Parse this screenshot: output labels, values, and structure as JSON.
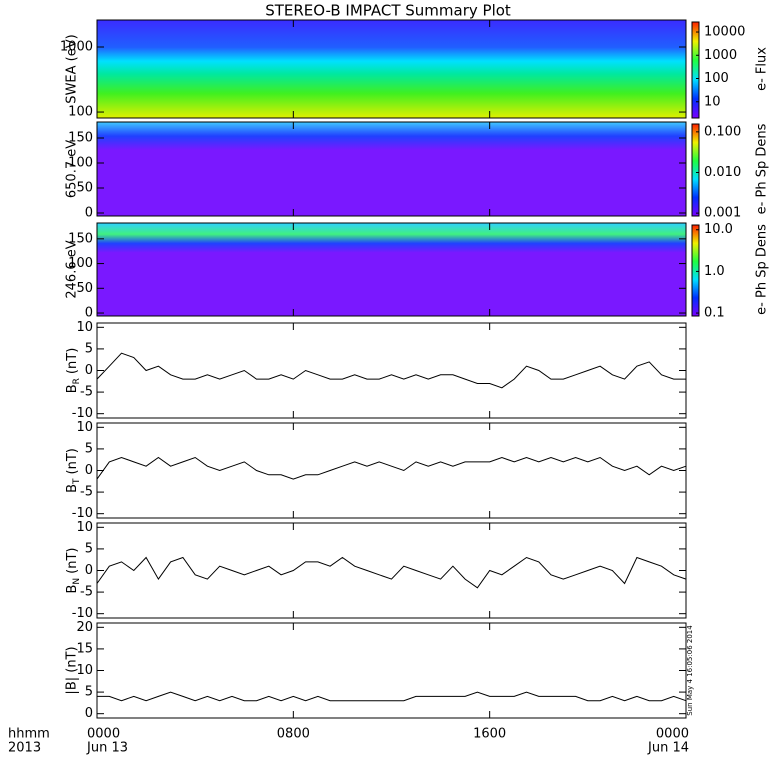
{
  "chart_data": [
    {
      "type": "spectrogram",
      "title": "STEREO-B IMPACT Summary Plot",
      "ylabel": "SWEA (eV)",
      "log": true,
      "ylim": [
        81,
        2600
      ],
      "yticks": [
        100,
        1000
      ],
      "colorbar": {
        "label": "e- Flux",
        "log": true,
        "clim": [
          2,
          27000
        ],
        "ticks": [
          10,
          100,
          1000,
          10000
        ]
      }
    },
    {
      "type": "spectrogram",
      "ylabel": "650.7 eV",
      "ylim": [
        -6,
        182
      ],
      "yticks": [
        0,
        50,
        100,
        150
      ],
      "colorbar": {
        "label": "e- Ph Sp Dens",
        "log": true,
        "clim": [
          0.00085,
          0.156
        ],
        "ticks": [
          {
            "value": 0.001,
            "label": "0.001"
          },
          {
            "value": 0.01,
            "label": "0.010"
          },
          {
            "value": 0.1,
            "label": "0.100"
          }
        ]
      }
    },
    {
      "type": "spectrogram",
      "ylabel": "246.6 eV",
      "ylim": [
        -6,
        182
      ],
      "yticks": [
        0,
        50,
        100,
        150
      ],
      "colorbar": {
        "label": "e- Ph Sp Dens",
        "log": true,
        "clim": [
          0.085,
          13
        ],
        "ticks": [
          0.1,
          {
            "value": 1,
            "label": "1.0"
          },
          {
            "value": 10,
            "label": "10.0"
          }
        ]
      }
    },
    {
      "type": "line",
      "ylabel": "B",
      "ylabel_sub": "R",
      "ylabel_unit": "(nT)",
      "ylim": [
        -11,
        11
      ],
      "yticks": [
        -10,
        -5,
        0,
        5,
        10
      ],
      "series": [
        {
          "color": "#000000",
          "values": [
            -2,
            1,
            4,
            3,
            0,
            1,
            -1,
            -2,
            -2,
            -1,
            -2,
            -1,
            0,
            -2,
            -2,
            -1,
            -2,
            0,
            -1,
            -2,
            -2,
            -1,
            -2,
            -2,
            -1,
            -2,
            -1,
            -2,
            -1,
            -1,
            -2,
            -3,
            -3,
            -4,
            -2,
            1,
            0,
            -2,
            -2,
            -1,
            0,
            1,
            -1,
            -2,
            1,
            2,
            -1,
            -2,
            -2
          ]
        }
      ]
    },
    {
      "type": "line",
      "ylabel": "B",
      "ylabel_sub": "T",
      "ylabel_unit": "(nT)",
      "ylim": [
        -11,
        11
      ],
      "yticks": [
        -10,
        -5,
        0,
        5,
        10
      ],
      "series": [
        {
          "color": "#000000",
          "values": [
            -2,
            2,
            3,
            2,
            1,
            3,
            1,
            2,
            3,
            1,
            0,
            1,
            2,
            0,
            -1,
            -1,
            -2,
            -1,
            -1,
            0,
            1,
            2,
            1,
            2,
            1,
            0,
            2,
            1,
            2,
            1,
            2,
            2,
            2,
            3,
            2,
            3,
            2,
            3,
            2,
            3,
            2,
            3,
            1,
            0,
            1,
            -1,
            1,
            0,
            1
          ]
        }
      ]
    },
    {
      "type": "line",
      "ylabel": "B",
      "ylabel_sub": "N",
      "ylabel_unit": "(nT)",
      "ylim": [
        -11,
        11
      ],
      "yticks": [
        -10,
        -5,
        0,
        5,
        10
      ],
      "series": [
        {
          "color": "#000000",
          "values": [
            -3,
            1,
            2,
            0,
            3,
            -2,
            2,
            3,
            -1,
            -2,
            1,
            0,
            -1,
            0,
            1,
            -1,
            0,
            2,
            2,
            1,
            3,
            1,
            0,
            -1,
            -2,
            1,
            0,
            -1,
            -2,
            1,
            -2,
            -4,
            0,
            -1,
            1,
            3,
            2,
            -1,
            -2,
            -1,
            0,
            1,
            0,
            -3,
            3,
            2,
            1,
            -1,
            -2
          ]
        }
      ]
    },
    {
      "type": "line",
      "ylabel": "|B| (nT)",
      "ylim": [
        -1,
        21
      ],
      "yticks": [
        0,
        5,
        10,
        15,
        20
      ],
      "series": [
        {
          "color": "#000000",
          "values": [
            4,
            4,
            3,
            4,
            3,
            4,
            5,
            4,
            3,
            4,
            3,
            4,
            3,
            3,
            4,
            3,
            4,
            3,
            4,
            3,
            3,
            3,
            3,
            3,
            3,
            3,
            4,
            4,
            4,
            4,
            4,
            5,
            4,
            4,
            4,
            5,
            4,
            4,
            4,
            4,
            3,
            3,
            4,
            3,
            4,
            3,
            3,
            4,
            3
          ]
        }
      ],
      "x": [
        0,
        0.5,
        1,
        1.5,
        2,
        2.5,
        3,
        3.5,
        4,
        4.5,
        5,
        5.5,
        6,
        6.5,
        7,
        7.5,
        8,
        8.5,
        9,
        9.5,
        10,
        10.5,
        11,
        11.5,
        12,
        12.5,
        13,
        13.5,
        14,
        14.5,
        15,
        15.5,
        16,
        16.5,
        17,
        17.5,
        18,
        18.5,
        19,
        19.5,
        20,
        20.5,
        21,
        21.5,
        22,
        22.5,
        23,
        23.5,
        24
      ],
      "xlim": [
        0,
        24
      ],
      "xticks": [
        {
          "value": 0,
          "label": "0000"
        },
        {
          "value": 8,
          "label": "0800"
        },
        {
          "value": 16,
          "label": "1600"
        },
        {
          "value": 24,
          "label": "0000"
        }
      ],
      "xtick_dates": [
        "Jun 13",
        null,
        null,
        "Jun 14"
      ],
      "xaxis_label": [
        "hhmm",
        "2013"
      ],
      "timestamp": "Sun May  4 16:05:06 2014"
    }
  ]
}
